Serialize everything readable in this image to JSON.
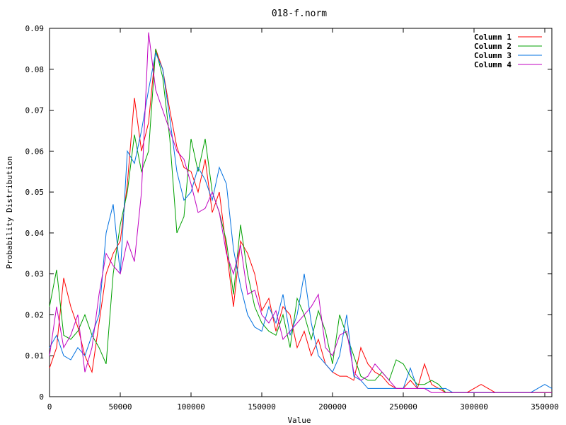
{
  "chart_data": {
    "type": "line",
    "title": "018-f.norm",
    "xlabel": "Value",
    "ylabel": "Probability Distribution",
    "xlim": [
      0,
      355000
    ],
    "ylim": [
      0,
      0.09
    ],
    "xticks": [
      0,
      50000,
      100000,
      150000,
      200000,
      250000,
      300000,
      350000
    ],
    "yticks": [
      0,
      0.01,
      0.02,
      0.03,
      0.04,
      0.05,
      0.06,
      0.07,
      0.08,
      0.09
    ],
    "grid": false,
    "legend_position": "top-right",
    "series": [
      {
        "name": "Column 1",
        "color": "#ff0000",
        "x": [
          0,
          5000,
          10000,
          15000,
          20000,
          25000,
          30000,
          35000,
          40000,
          45000,
          50000,
          55000,
          60000,
          65000,
          70000,
          75000,
          80000,
          85000,
          90000,
          95000,
          100000,
          105000,
          110000,
          115000,
          120000,
          125000,
          130000,
          135000,
          140000,
          145000,
          150000,
          155000,
          160000,
          165000,
          170000,
          175000,
          180000,
          185000,
          190000,
          195000,
          200000,
          205000,
          210000,
          215000,
          220000,
          225000,
          230000,
          235000,
          240000,
          245000,
          250000,
          255000,
          260000,
          265000,
          270000,
          275000,
          280000,
          285000,
          290000,
          295000,
          300000,
          305000,
          310000,
          315000,
          320000,
          325000,
          330000,
          335000,
          340000,
          345000,
          350000,
          355000
        ],
        "y": [
          0.007,
          0.012,
          0.029,
          0.022,
          0.017,
          0.01,
          0.006,
          0.018,
          0.03,
          0.035,
          0.038,
          0.052,
          0.073,
          0.06,
          0.067,
          0.085,
          0.08,
          0.07,
          0.061,
          0.056,
          0.055,
          0.05,
          0.058,
          0.045,
          0.05,
          0.036,
          0.022,
          0.038,
          0.035,
          0.03,
          0.021,
          0.024,
          0.016,
          0.022,
          0.02,
          0.012,
          0.016,
          0.01,
          0.014,
          0.008,
          0.006,
          0.005,
          0.005,
          0.004,
          0.012,
          0.008,
          0.006,
          0.005,
          0.003,
          0.002,
          0.002,
          0.004,
          0.002,
          0.008,
          0.003,
          0.002,
          0.001,
          0.001,
          0.001,
          0.001,
          0.002,
          0.003,
          0.002,
          0.001,
          0.001,
          0.001,
          0.001,
          0.001,
          0.001,
          0.001,
          0.001,
          0.001
        ]
      },
      {
        "name": "Column 2",
        "color": "#00a000",
        "x": [
          0,
          5000,
          10000,
          15000,
          20000,
          25000,
          30000,
          35000,
          40000,
          45000,
          50000,
          55000,
          60000,
          65000,
          70000,
          75000,
          80000,
          85000,
          90000,
          95000,
          100000,
          105000,
          110000,
          115000,
          120000,
          125000,
          130000,
          135000,
          140000,
          145000,
          150000,
          155000,
          160000,
          165000,
          170000,
          175000,
          180000,
          185000,
          190000,
          195000,
          200000,
          205000,
          210000,
          215000,
          220000,
          225000,
          230000,
          235000,
          240000,
          245000,
          250000,
          255000,
          260000,
          265000,
          270000,
          275000,
          280000,
          285000,
          290000,
          295000,
          300000,
          305000,
          310000,
          315000,
          320000,
          325000,
          330000,
          335000,
          340000,
          345000,
          350000,
          355000
        ],
        "y": [
          0.022,
          0.031,
          0.015,
          0.014,
          0.016,
          0.02,
          0.015,
          0.012,
          0.008,
          0.03,
          0.042,
          0.05,
          0.064,
          0.055,
          0.06,
          0.085,
          0.078,
          0.063,
          0.04,
          0.044,
          0.063,
          0.055,
          0.063,
          0.05,
          0.045,
          0.038,
          0.025,
          0.042,
          0.03,
          0.022,
          0.018,
          0.016,
          0.015,
          0.02,
          0.012,
          0.024,
          0.02,
          0.014,
          0.021,
          0.016,
          0.008,
          0.02,
          0.015,
          0.01,
          0.005,
          0.004,
          0.004,
          0.006,
          0.004,
          0.009,
          0.008,
          0.005,
          0.003,
          0.003,
          0.004,
          0.003,
          0.001,
          0.001,
          0.001,
          0.001,
          0.001,
          0.001,
          0.001,
          0.001,
          0.001,
          0.001,
          0.001,
          0.001,
          0.001,
          0.001,
          0.001,
          0.001
        ]
      },
      {
        "name": "Column 3",
        "color": "#0070e0",
        "x": [
          0,
          5000,
          10000,
          15000,
          20000,
          25000,
          30000,
          35000,
          40000,
          45000,
          50000,
          55000,
          60000,
          65000,
          70000,
          75000,
          80000,
          85000,
          90000,
          95000,
          100000,
          105000,
          110000,
          115000,
          120000,
          125000,
          130000,
          135000,
          140000,
          145000,
          150000,
          155000,
          160000,
          165000,
          170000,
          175000,
          180000,
          185000,
          190000,
          195000,
          200000,
          205000,
          210000,
          215000,
          220000,
          225000,
          230000,
          235000,
          240000,
          245000,
          250000,
          255000,
          260000,
          265000,
          270000,
          275000,
          280000,
          285000,
          290000,
          295000,
          300000,
          305000,
          310000,
          315000,
          320000,
          325000,
          330000,
          335000,
          340000,
          345000,
          350000,
          355000
        ],
        "y": [
          0.012,
          0.015,
          0.01,
          0.009,
          0.012,
          0.01,
          0.015,
          0.02,
          0.04,
          0.047,
          0.03,
          0.06,
          0.057,
          0.065,
          0.075,
          0.084,
          0.08,
          0.068,
          0.055,
          0.048,
          0.05,
          0.056,
          0.053,
          0.048,
          0.056,
          0.052,
          0.036,
          0.027,
          0.02,
          0.017,
          0.016,
          0.022,
          0.018,
          0.025,
          0.015,
          0.02,
          0.03,
          0.018,
          0.01,
          0.008,
          0.006,
          0.01,
          0.02,
          0.005,
          0.004,
          0.002,
          0.002,
          0.002,
          0.002,
          0.002,
          0.002,
          0.007,
          0.002,
          0.002,
          0.002,
          0.002,
          0.002,
          0.001,
          0.001,
          0.001,
          0.001,
          0.001,
          0.001,
          0.001,
          0.001,
          0.001,
          0.001,
          0.001,
          0.001,
          0.002,
          0.003,
          0.002
        ]
      },
      {
        "name": "Column 4",
        "color": "#c000c0",
        "x": [
          0,
          5000,
          10000,
          15000,
          20000,
          25000,
          30000,
          35000,
          40000,
          45000,
          50000,
          55000,
          60000,
          65000,
          70000,
          75000,
          80000,
          85000,
          90000,
          95000,
          100000,
          105000,
          110000,
          115000,
          120000,
          125000,
          130000,
          135000,
          140000,
          145000,
          150000,
          155000,
          160000,
          165000,
          170000,
          175000,
          180000,
          185000,
          190000,
          195000,
          200000,
          205000,
          210000,
          215000,
          220000,
          225000,
          230000,
          235000,
          240000,
          245000,
          250000,
          255000,
          260000,
          265000,
          270000,
          275000,
          280000,
          285000,
          290000,
          295000,
          300000,
          305000,
          310000,
          315000,
          320000,
          325000,
          330000,
          335000,
          340000,
          345000,
          350000,
          355000
        ],
        "y": [
          0.01,
          0.022,
          0.012,
          0.015,
          0.02,
          0.006,
          0.012,
          0.025,
          0.035,
          0.032,
          0.03,
          0.038,
          0.033,
          0.05,
          0.089,
          0.075,
          0.07,
          0.065,
          0.06,
          0.058,
          0.052,
          0.045,
          0.046,
          0.05,
          0.045,
          0.035,
          0.03,
          0.037,
          0.025,
          0.026,
          0.02,
          0.018,
          0.021,
          0.014,
          0.016,
          0.018,
          0.02,
          0.022,
          0.025,
          0.012,
          0.01,
          0.015,
          0.016,
          0.006,
          0.004,
          0.005,
          0.008,
          0.006,
          0.004,
          0.002,
          0.002,
          0.002,
          0.002,
          0.002,
          0.001,
          0.001,
          0.001,
          0.001,
          0.001,
          0.001,
          0.001,
          0.001,
          0.001,
          0.001,
          0.001,
          0.001,
          0.001,
          0.001,
          0.001,
          0.001,
          0.001,
          0.001
        ]
      }
    ]
  }
}
